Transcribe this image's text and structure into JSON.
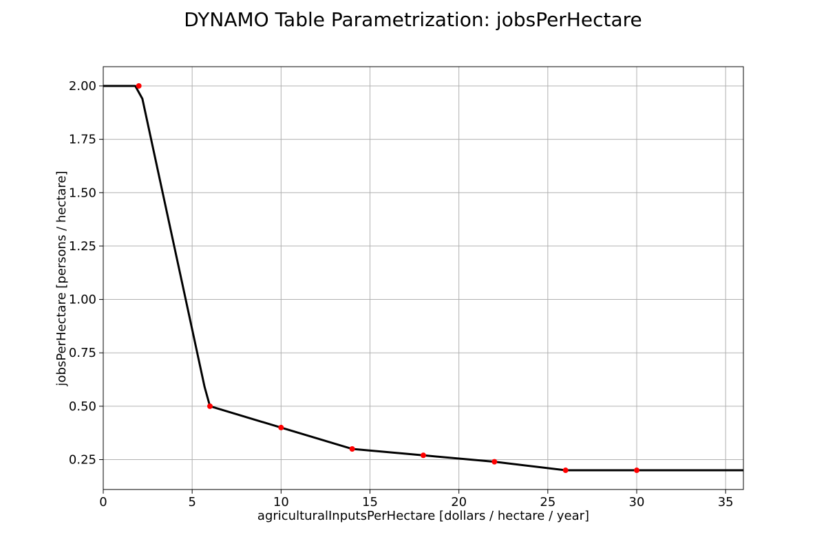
{
  "chart_data": {
    "type": "line",
    "title": "DYNAMO Table Parametrization: jobsPerHectare",
    "xlabel": "agriculturalInputsPerHectare [dollars / hectare / year]",
    "ylabel": "jobsPerHectare [persons / hectare]",
    "xlim": [
      0,
      36
    ],
    "ylim": [
      0.11,
      2.09
    ],
    "xticks": [
      0,
      5,
      10,
      15,
      20,
      25,
      30,
      35
    ],
    "yticks": [
      0.25,
      0.5,
      0.75,
      1.0,
      1.25,
      1.5,
      1.75,
      2.0
    ],
    "xtick_labels": [
      "0",
      "5",
      "10",
      "15",
      "20",
      "25",
      "30",
      "35"
    ],
    "ytick_labels": [
      "0.25",
      "0.50",
      "0.75",
      "1.00",
      "1.25",
      "1.50",
      "1.75",
      "2.00"
    ],
    "grid": true,
    "series": [
      {
        "style": "line",
        "color": "#000000",
        "x": [
          0,
          1.8,
          2.2,
          5.7,
          6,
          10,
          14,
          18,
          22,
          26,
          30,
          36
        ],
        "y": [
          2.0,
          2.0,
          1.94,
          0.59,
          0.5,
          0.4,
          0.3,
          0.27,
          0.24,
          0.2,
          0.2,
          0.2
        ]
      },
      {
        "style": "points",
        "color": "#ff0000",
        "x": [
          2,
          6,
          10,
          14,
          18,
          22,
          26,
          30
        ],
        "y": [
          2.0,
          0.5,
          0.4,
          0.3,
          0.27,
          0.24,
          0.2,
          0.2
        ]
      }
    ]
  }
}
